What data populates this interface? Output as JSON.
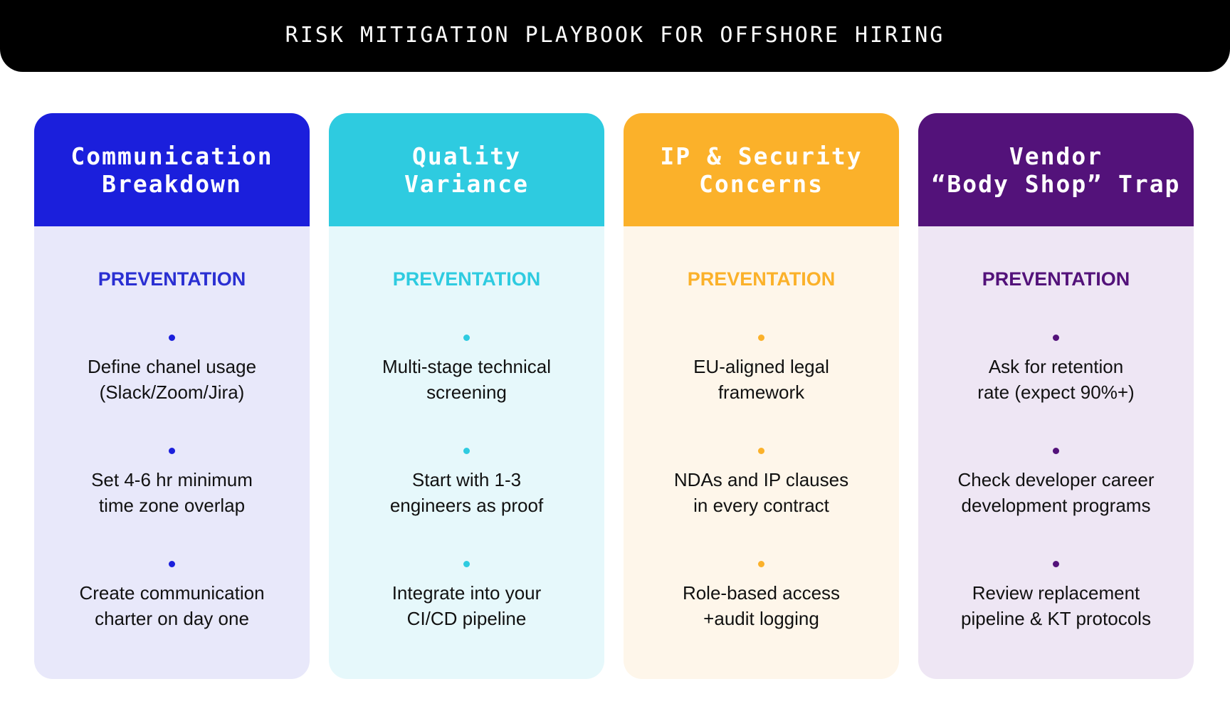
{
  "header": {
    "title": "RISK MITIGATION PLAYBOOK FOR OFFSHORE HIRING"
  },
  "columns": [
    {
      "title": "Communication\nBreakdown",
      "label": "PREVENTATION",
      "color": "#1b1fdc",
      "label_color": "#2a2fd2",
      "bg": "#e8e8fa",
      "items": [
        "Define chanel usage\n(Slack/Zoom/Jira)",
        "Set 4-6 hr minimum\ntime zone overlap",
        "Create communication\ncharter on day one"
      ]
    },
    {
      "title": "Quality\nVariance",
      "label": "PREVENTATION",
      "color": "#2ecbe0",
      "label_color": "#2ecbe0",
      "bg": "#e6f8fb",
      "items": [
        "Multi-stage technical\nscreening",
        "Start with 1-3\nengineers as proof",
        "Integrate into your\nCI/CD pipeline"
      ]
    },
    {
      "title": "IP & Security\nConcerns",
      "label": "PREVENTATION",
      "color": "#fbb12a",
      "label_color": "#fbb12a",
      "bg": "#fef6ea",
      "items": [
        "EU-aligned legal\nframework",
        "NDAs and IP clauses\nin every contract",
        "Role-based access\n+audit logging"
      ]
    },
    {
      "title": "Vendor\n“Body Shop” Trap",
      "label": "PREVENTATION",
      "color": "#53127a",
      "label_color": "#53127a",
      "bg": "#eee6f4",
      "items": [
        "Ask for retention\nrate (expect 90%+)",
        "Check developer career\ndevelopment programs",
        "Review replacement\npipeline & KT protocols"
      ]
    }
  ]
}
